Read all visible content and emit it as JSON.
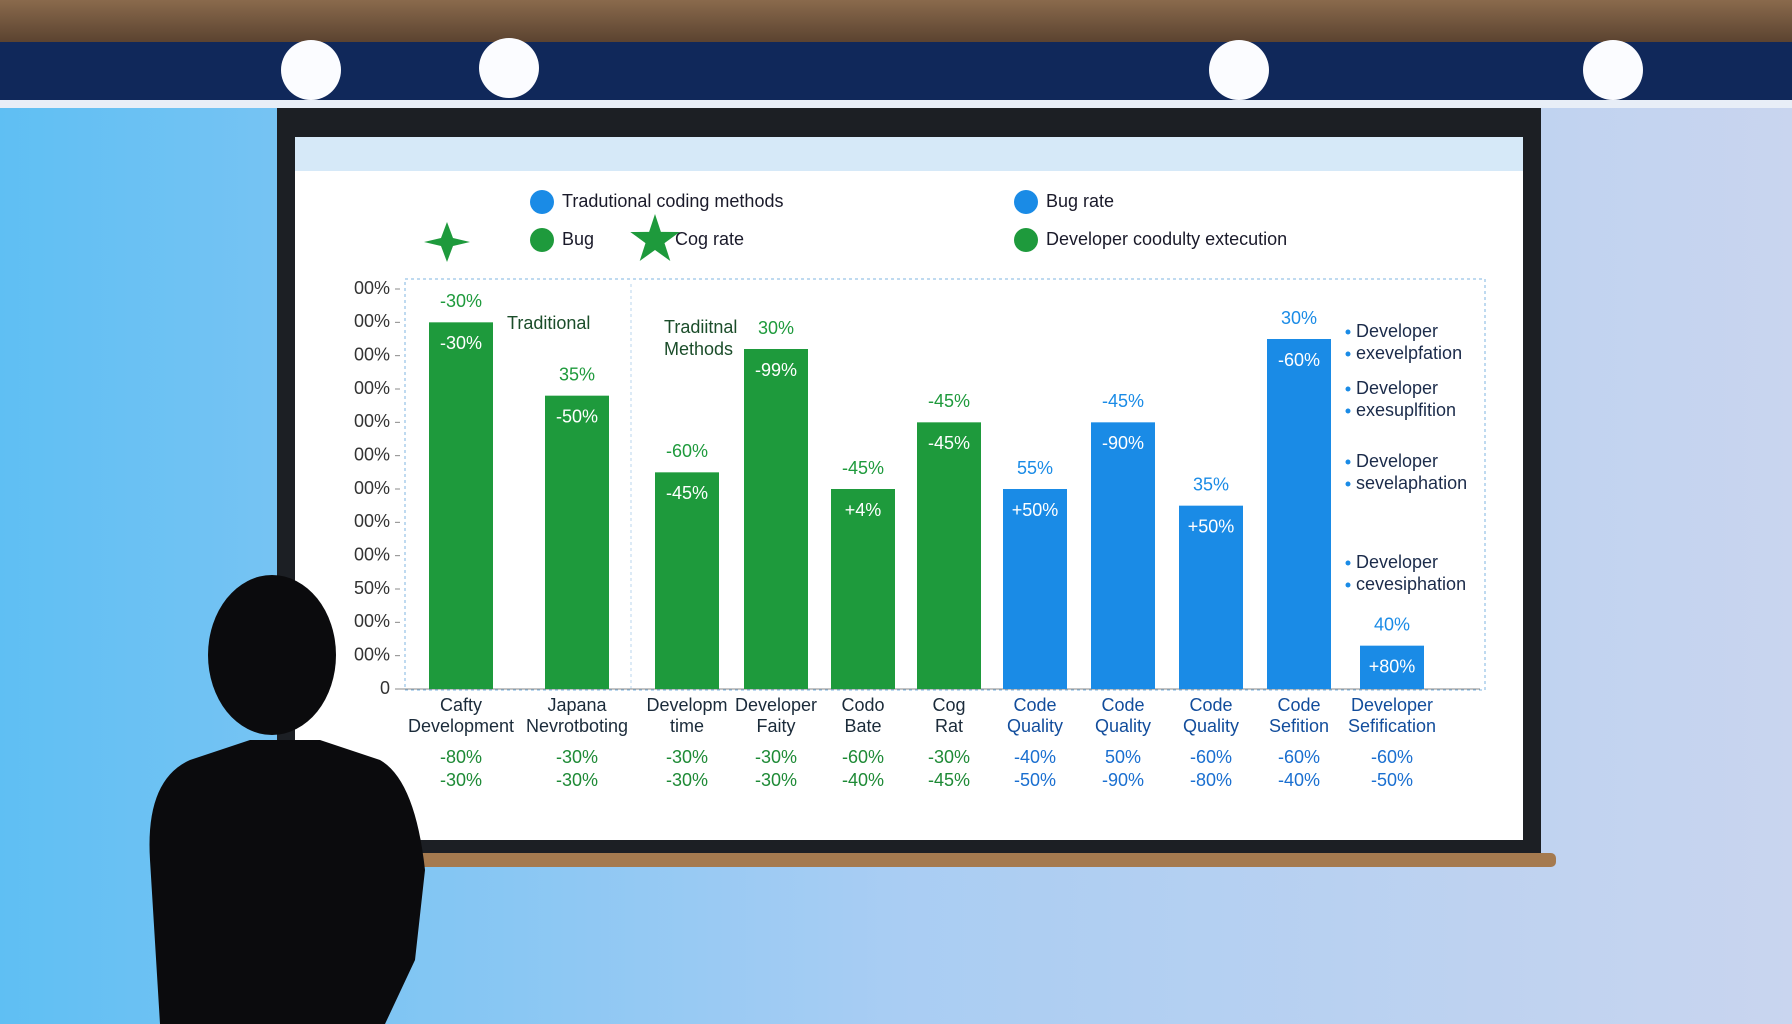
{
  "chart_data": {
    "type": "bar",
    "legend": [
      {
        "name": "Tradutional coding methods",
        "color": "#1a8be6",
        "marker": "hex"
      },
      {
        "name": "Bug rate",
        "color": "#1a8be6",
        "marker": "hex"
      },
      {
        "name": "Bug",
        "color": "#1e9a3c",
        "marker": "hex"
      },
      {
        "name": "Cog rate",
        "color": "#1e9a3c",
        "marker": "star"
      },
      {
        "name": "Developer coodulty extecution",
        "color": "#1e9a3c",
        "marker": "hex"
      }
    ],
    "categories": [
      [
        "Cafty",
        "Development"
      ],
      [
        "Japana",
        "Nevrotboting"
      ],
      [
        "Developm",
        "time"
      ],
      [
        "Developer",
        "Faity"
      ],
      [
        "Codo",
        "Bate"
      ],
      [
        "Cog",
        "Rat"
      ],
      [
        "Code",
        "Quality"
      ],
      [
        "Code",
        "Quality"
      ],
      [
        "Code",
        "Quality"
      ],
      [
        "Code",
        "Sefition"
      ],
      [
        "Developer",
        "Sefification"
      ]
    ],
    "values": [
      110,
      88,
      65,
      102,
      60,
      80,
      60,
      80,
      55,
      105,
      13
    ],
    "colors": [
      "#1e9a3c",
      "#1e9a3c",
      "#1e9a3c",
      "#1e9a3c",
      "#1e9a3c",
      "#1e9a3c",
      "#1a8be6",
      "#1a8be6",
      "#1a8be6",
      "#1a8be6",
      "#1a8be6"
    ],
    "top_labels": [
      "-30%",
      "35%",
      "-60%",
      "30%",
      "-45%",
      "-45%",
      "55%",
      "-45%",
      "35%",
      "30%",
      "40%"
    ],
    "inner_labels": [
      "-30%",
      "-50%",
      "-45%",
      "-99%",
      "+4%",
      "-45%",
      "+50%",
      "-90%",
      "+50%",
      "-60%",
      "+80%"
    ],
    "row_labels": [
      [
        "-80%",
        "-30%",
        "-30%",
        "-30%",
        "-60%",
        "-30%",
        "-40%",
        "50%",
        "-60%",
        "-60%",
        "-60%"
      ],
      [
        "-30%",
        "-30%",
        "-30%",
        "-30%",
        "-40%",
        "-45%",
        "-50%",
        "-90%",
        "-80%",
        "-40%",
        "-50%"
      ]
    ],
    "annotations": [
      "Traditional",
      "Tradiitnal",
      "Methods"
    ],
    "side_notes": [
      [
        "Developer",
        "exevelpfation"
      ],
      [
        "Developer",
        "exesuplfition"
      ],
      [
        "Developer",
        "sevelaphation"
      ],
      [
        "Developer",
        "cevesiphation"
      ]
    ],
    "ylim": [
      0,
      120
    ],
    "yticks": [
      0,
      {
        "value": 10,
        "label": "00%"
      },
      {
        "value": 20,
        "label": "00%"
      },
      {
        "value": 30,
        "label": "50%"
      },
      {
        "value": 40,
        "label": "00%"
      },
      {
        "value": 50,
        "label": "00%"
      },
      {
        "value": 60,
        "label": "00%"
      },
      {
        "value": 70,
        "label": "00%"
      },
      {
        "value": 80,
        "label": "00%"
      },
      {
        "value": 90,
        "label": "00%"
      },
      {
        "value": 100,
        "label": "00%"
      },
      {
        "value": 110,
        "label": "00%"
      },
      {
        "value": 120,
        "label": "00%"
      }
    ],
    "grid": false
  }
}
